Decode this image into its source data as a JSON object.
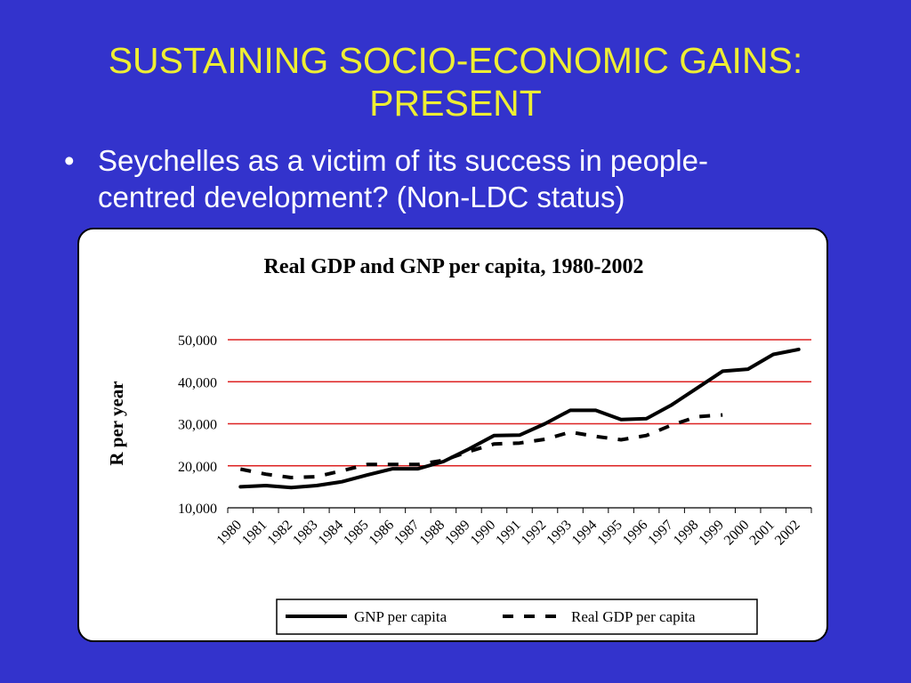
{
  "slide": {
    "title_line1": "SUSTAINING SOCIO-ECONOMIC GAINS:",
    "title_line2": "PRESENT",
    "bullet_marker": "•",
    "bullet_line1": "Seychelles as a victim of its success in people-",
    "bullet_line2": "centred development? (Non-LDC status)",
    "background_color": "#3333cc",
    "title_color": "#eeee33"
  },
  "chart_data": {
    "type": "line",
    "title": "Real GDP and GNP per capita, 1980-2002",
    "xlabel": "",
    "ylabel": "R per year",
    "ylim": [
      10000,
      50000
    ],
    "yticks": [
      "10,000",
      "20,000",
      "30,000",
      "40,000",
      "50,000"
    ],
    "ytick_values": [
      10000,
      20000,
      30000,
      40000,
      50000
    ],
    "categories": [
      "1980",
      "1981",
      "1982",
      "1983",
      "1984",
      "1985",
      "1986",
      "1987",
      "1988",
      "1989",
      "1990",
      "1991",
      "1992",
      "1993",
      "1994",
      "1995",
      "1996",
      "1997",
      "1998",
      "1999",
      "2000",
      "2001",
      "2002"
    ],
    "grid": true,
    "grid_color": "#dd2222",
    "legend_position": "bottom",
    "series": [
      {
        "name": "GNP per capita",
        "style": "solid",
        "color": "#000000",
        "values": [
          15000,
          15300,
          14800,
          15300,
          16200,
          17800,
          19300,
          19300,
          21000,
          24000,
          27200,
          27300,
          30000,
          33200,
          33200,
          31000,
          31200,
          34500,
          38500,
          42500,
          43000,
          46500,
          47700
        ]
      },
      {
        "name": "Real GDP per capita",
        "style": "dashed",
        "color": "#000000",
        "values": [
          19200,
          18000,
          17200,
          17400,
          18800,
          20300,
          20300,
          20300,
          21300,
          23400,
          25200,
          25400,
          26300,
          28000,
          27000,
          26200,
          27200,
          29700,
          31700,
          32100,
          null,
          null,
          null
        ]
      }
    ]
  }
}
